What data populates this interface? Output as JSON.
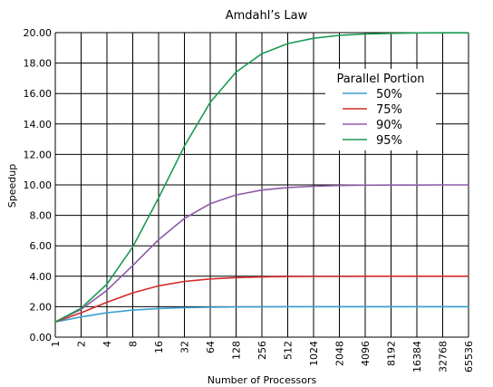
{
  "chart_data": {
    "type": "line",
    "title": "Amdahl’s Law",
    "xlabel": "Number of Processors",
    "ylabel": "Speedup",
    "x": [
      1,
      2,
      4,
      8,
      16,
      32,
      64,
      128,
      256,
      512,
      1024,
      2048,
      4096,
      8192,
      16384,
      32768,
      65536
    ],
    "x_tick_labels": [
      "1",
      "2",
      "4",
      "8",
      "16",
      "32",
      "64",
      "128",
      "256",
      "512",
      "1024",
      "2048",
      "4096",
      "8192",
      "16384",
      "32768",
      "65536"
    ],
    "x_scale": "log2",
    "y_tick_labels": [
      "0.00",
      "2.00",
      "4.00",
      "6.00",
      "8.00",
      "10.00",
      "12.00",
      "14.00",
      "16.00",
      "18.00",
      "20.00"
    ],
    "ylim": [
      0,
      20
    ],
    "grid": true,
    "legend": {
      "title": "Parallel Portion",
      "position": "top-right"
    },
    "series": [
      {
        "name": "50%",
        "color": "#3aa0d0",
        "values": [
          1.0,
          1.33,
          1.6,
          1.78,
          1.88,
          1.94,
          1.97,
          1.98,
          1.99,
          2.0,
          2.0,
          2.0,
          2.0,
          2.0,
          2.0,
          2.0,
          2.0
        ]
      },
      {
        "name": "75%",
        "color": "#d42a2a",
        "values": [
          1.0,
          1.6,
          2.29,
          2.91,
          3.37,
          3.66,
          3.82,
          3.91,
          3.95,
          3.98,
          3.99,
          3.99,
          4.0,
          4.0,
          4.0,
          4.0,
          4.0
        ]
      },
      {
        "name": "90%",
        "color": "#8e5ba8",
        "values": [
          1.0,
          1.82,
          3.08,
          4.71,
          6.4,
          7.8,
          8.77,
          9.34,
          9.66,
          9.83,
          9.91,
          9.96,
          9.98,
          9.99,
          9.99,
          10.0,
          10.0
        ]
      },
      {
        "name": "95%",
        "color": "#1a9a50",
        "values": [
          1.0,
          1.9,
          3.48,
          5.93,
          9.14,
          12.55,
          15.42,
          17.41,
          18.62,
          19.28,
          19.63,
          19.82,
          19.91,
          19.95,
          19.98,
          19.99,
          19.99
        ]
      }
    ]
  }
}
